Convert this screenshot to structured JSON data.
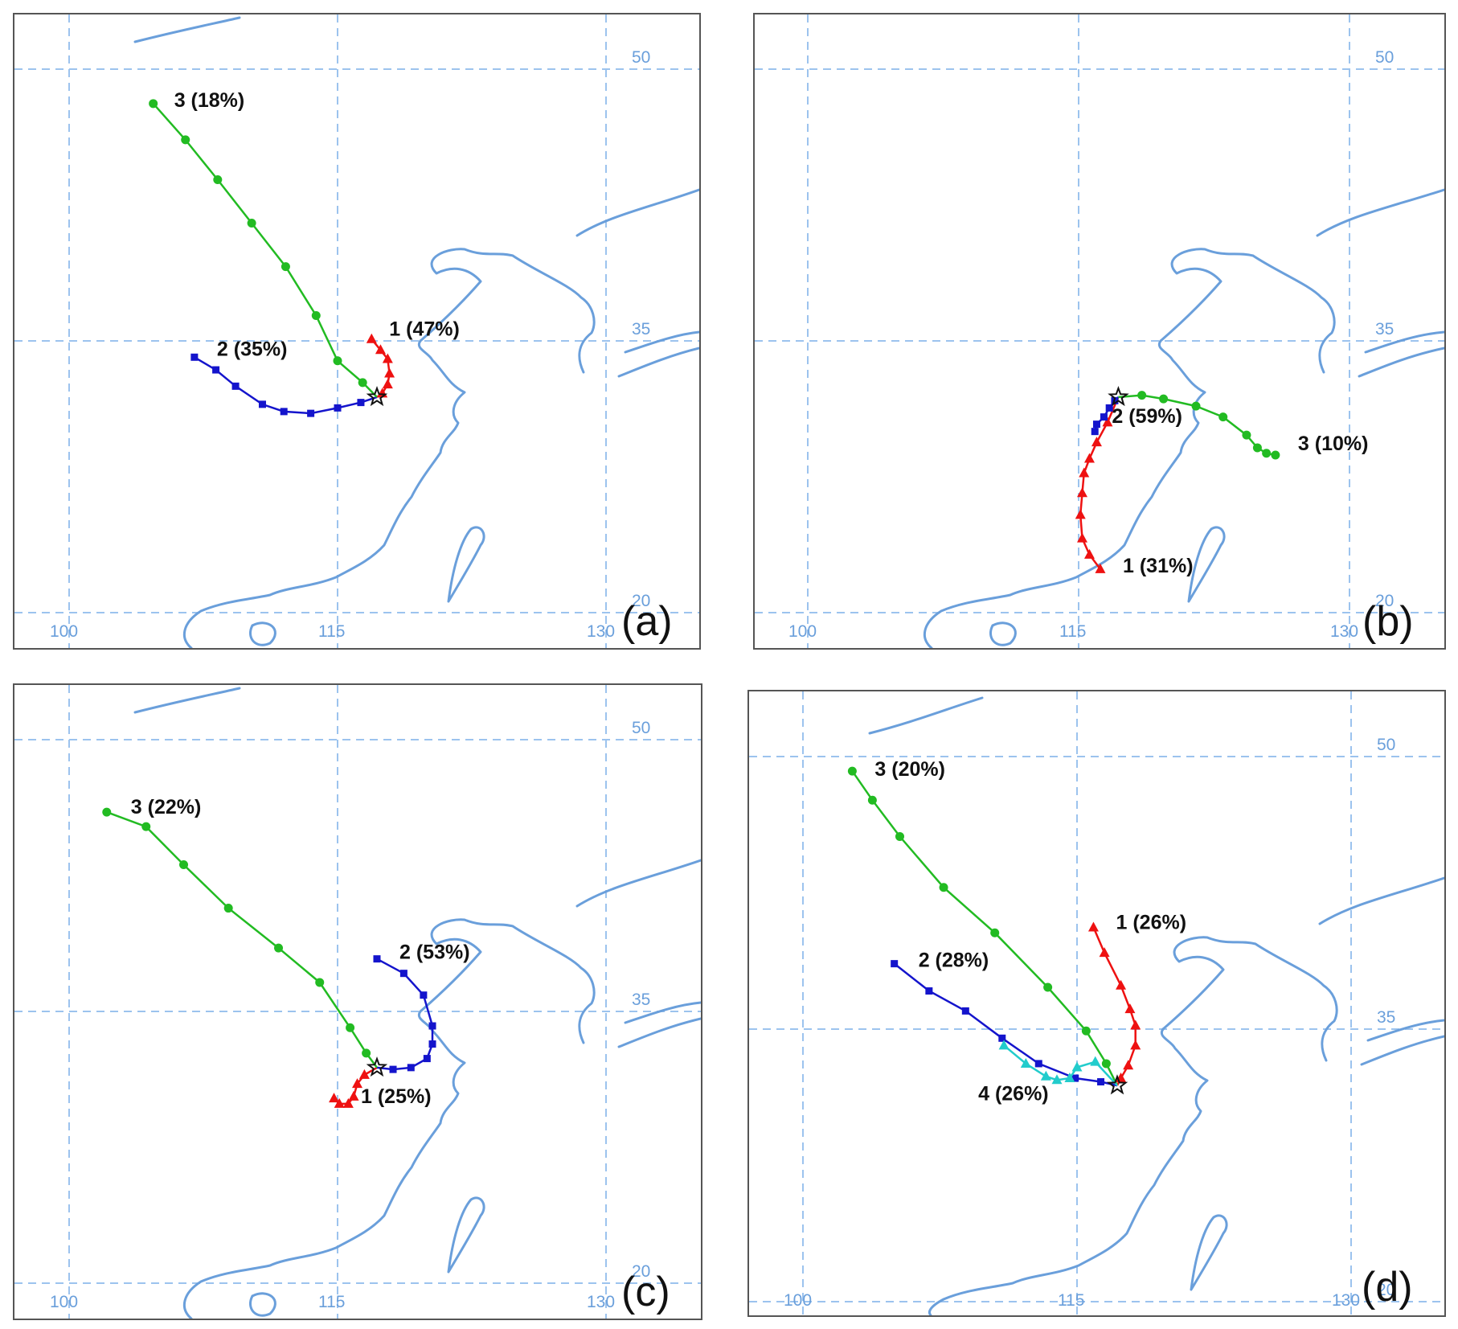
{
  "colors": {
    "cluster_1": "#ee1111",
    "cluster_2": "#1414cc",
    "cluster_3": "#22bb22",
    "cluster_4": "#22cccc",
    "coast": "#6a9fdb",
    "grid": "#9cc3ee",
    "start_marker": "#111111"
  },
  "marker_shapes": {
    "cluster_1": "triangle",
    "cluster_2": "square",
    "cluster_3": "circle",
    "cluster_4": "triangle"
  },
  "start_marker_icon": "star-icon",
  "chart_data": [
    {
      "type": "trajectory-map",
      "panel_label": "(a)",
      "lon_ticks": [
        "100",
        "115",
        "130"
      ],
      "lat_ticks": [
        "50",
        "35",
        "20"
      ],
      "start": [
        117.2,
        31.9
      ],
      "trajectories": [
        {
          "name": "1 (47%)",
          "cluster": "1",
          "points": [
            [
              116.9,
              35.1
            ],
            [
              117.4,
              34.5
            ],
            [
              117.8,
              34.0
            ],
            [
              117.9,
              33.2
            ],
            [
              117.8,
              32.6
            ],
            [
              117.5,
              32.1
            ],
            [
              117.2,
              31.9
            ]
          ]
        },
        {
          "name": "2 (35%)",
          "cluster": "2",
          "points": [
            [
              107.0,
              34.1
            ],
            [
              108.2,
              33.4
            ],
            [
              109.3,
              32.5
            ],
            [
              110.8,
              31.5
            ],
            [
              112.0,
              31.1
            ],
            [
              113.5,
              31.0
            ],
            [
              115.0,
              31.3
            ],
            [
              116.3,
              31.6
            ],
            [
              117.2,
              31.9
            ]
          ]
        },
        {
          "name": "3 (18%)",
          "cluster": "3",
          "points": [
            [
              104.7,
              48.1
            ],
            [
              106.5,
              46.1
            ],
            [
              108.3,
              43.9
            ],
            [
              110.2,
              41.5
            ],
            [
              112.1,
              39.1
            ],
            [
              113.8,
              36.4
            ],
            [
              115.0,
              33.9
            ],
            [
              116.4,
              32.7
            ],
            [
              117.2,
              31.9
            ]
          ]
        }
      ]
    },
    {
      "type": "trajectory-map",
      "panel_label": "(b)",
      "lon_ticks": [
        "100",
        "115",
        "130"
      ],
      "lat_ticks": [
        "50",
        "35",
        "20"
      ],
      "start": [
        117.2,
        31.9
      ],
      "trajectories": [
        {
          "name": "1 (31%)",
          "cluster": "1",
          "points": [
            [
              116.2,
              22.4
            ],
            [
              115.6,
              23.2
            ],
            [
              115.2,
              24.1
            ],
            [
              115.1,
              25.4
            ],
            [
              115.2,
              26.6
            ],
            [
              115.3,
              27.7
            ],
            [
              115.6,
              28.5
            ],
            [
              116.0,
              29.4
            ],
            [
              116.6,
              30.5
            ],
            [
              117.2,
              31.9
            ]
          ]
        },
        {
          "name": "2 (59%)",
          "cluster": "2",
          "points": [
            [
              115.9,
              30.0
            ],
            [
              116.0,
              30.4
            ],
            [
              116.4,
              30.8
            ],
            [
              116.7,
              31.3
            ],
            [
              117.0,
              31.7
            ],
            [
              117.2,
              31.9
            ]
          ]
        },
        {
          "name": "3 (10%)",
          "cluster": "3",
          "points": [
            [
              125.9,
              28.7
            ],
            [
              125.4,
              28.8
            ],
            [
              124.9,
              29.1
            ],
            [
              124.3,
              29.8
            ],
            [
              123.0,
              30.8
            ],
            [
              121.5,
              31.4
            ],
            [
              119.7,
              31.8
            ],
            [
              118.5,
              32.0
            ],
            [
              117.2,
              31.9
            ]
          ]
        }
      ]
    },
    {
      "type": "trajectory-map",
      "panel_label": "(c)",
      "lon_ticks": [
        "100",
        "115",
        "130"
      ],
      "lat_ticks": [
        "50",
        "35",
        "20"
      ],
      "start": [
        117.2,
        31.9
      ],
      "trajectories": [
        {
          "name": "1 (25%)",
          "cluster": "1",
          "points": [
            [
              114.8,
              30.2
            ],
            [
              115.1,
              29.9
            ],
            [
              115.6,
              29.9
            ],
            [
              115.9,
              30.3
            ],
            [
              116.1,
              31.0
            ],
            [
              116.5,
              31.5
            ],
            [
              117.2,
              31.9
            ]
          ]
        },
        {
          "name": "2 (53%)",
          "cluster": "2",
          "points": [
            [
              117.2,
              37.9
            ],
            [
              118.7,
              37.1
            ],
            [
              119.8,
              35.9
            ],
            [
              120.3,
              34.2
            ],
            [
              120.3,
              33.2
            ],
            [
              120.0,
              32.4
            ],
            [
              119.1,
              31.9
            ],
            [
              118.1,
              31.8
            ],
            [
              117.2,
              31.9
            ]
          ]
        },
        {
          "name": "3 (22%)",
          "cluster": "3",
          "points": [
            [
              102.1,
              46.0
            ],
            [
              104.3,
              45.2
            ],
            [
              106.4,
              43.1
            ],
            [
              108.9,
              40.7
            ],
            [
              111.7,
              38.5
            ],
            [
              114.0,
              36.6
            ],
            [
              115.7,
              34.1
            ],
            [
              116.6,
              32.7
            ],
            [
              117.2,
              31.9
            ]
          ]
        }
      ]
    },
    {
      "type": "trajectory-map",
      "panel_label": "(d)",
      "lon_ticks": [
        "100",
        "115",
        "130"
      ],
      "lat_ticks": [
        "50",
        "35",
        "20"
      ],
      "start": [
        117.2,
        31.9
      ],
      "trajectories": [
        {
          "name": "1 (26%)",
          "cluster": "1",
          "points": [
            [
              115.9,
              40.6
            ],
            [
              116.5,
              39.2
            ],
            [
              117.4,
              37.4
            ],
            [
              117.9,
              36.1
            ],
            [
              118.2,
              35.2
            ],
            [
              118.2,
              34.1
            ],
            [
              117.8,
              33.0
            ],
            [
              117.4,
              32.3
            ],
            [
              117.2,
              31.9
            ]
          ]
        },
        {
          "name": "2 (28%)",
          "cluster": "2",
          "points": [
            [
              105.0,
              38.6
            ],
            [
              106.9,
              37.1
            ],
            [
              108.9,
              36.0
            ],
            [
              110.9,
              34.5
            ],
            [
              112.9,
              33.1
            ],
            [
              114.9,
              32.3
            ],
            [
              116.3,
              32.1
            ],
            [
              117.2,
              31.9
            ]
          ]
        },
        {
          "name": "3 (20%)",
          "cluster": "3",
          "points": [
            [
              102.7,
              49.2
            ],
            [
              103.8,
              47.6
            ],
            [
              105.3,
              45.6
            ],
            [
              107.7,
              42.8
            ],
            [
              110.5,
              40.3
            ],
            [
              113.4,
              37.3
            ],
            [
              115.5,
              34.9
            ],
            [
              116.6,
              33.1
            ],
            [
              117.2,
              31.9
            ]
          ]
        },
        {
          "name": "4 (26%)",
          "cluster": "4",
          "points": [
            [
              111.0,
              34.1
            ],
            [
              112.2,
              33.1
            ],
            [
              113.3,
              32.4
            ],
            [
              113.9,
              32.2
            ],
            [
              114.6,
              32.3
            ],
            [
              115.0,
              32.9
            ],
            [
              116.0,
              33.2
            ],
            [
              117.2,
              31.9
            ]
          ]
        }
      ]
    }
  ]
}
